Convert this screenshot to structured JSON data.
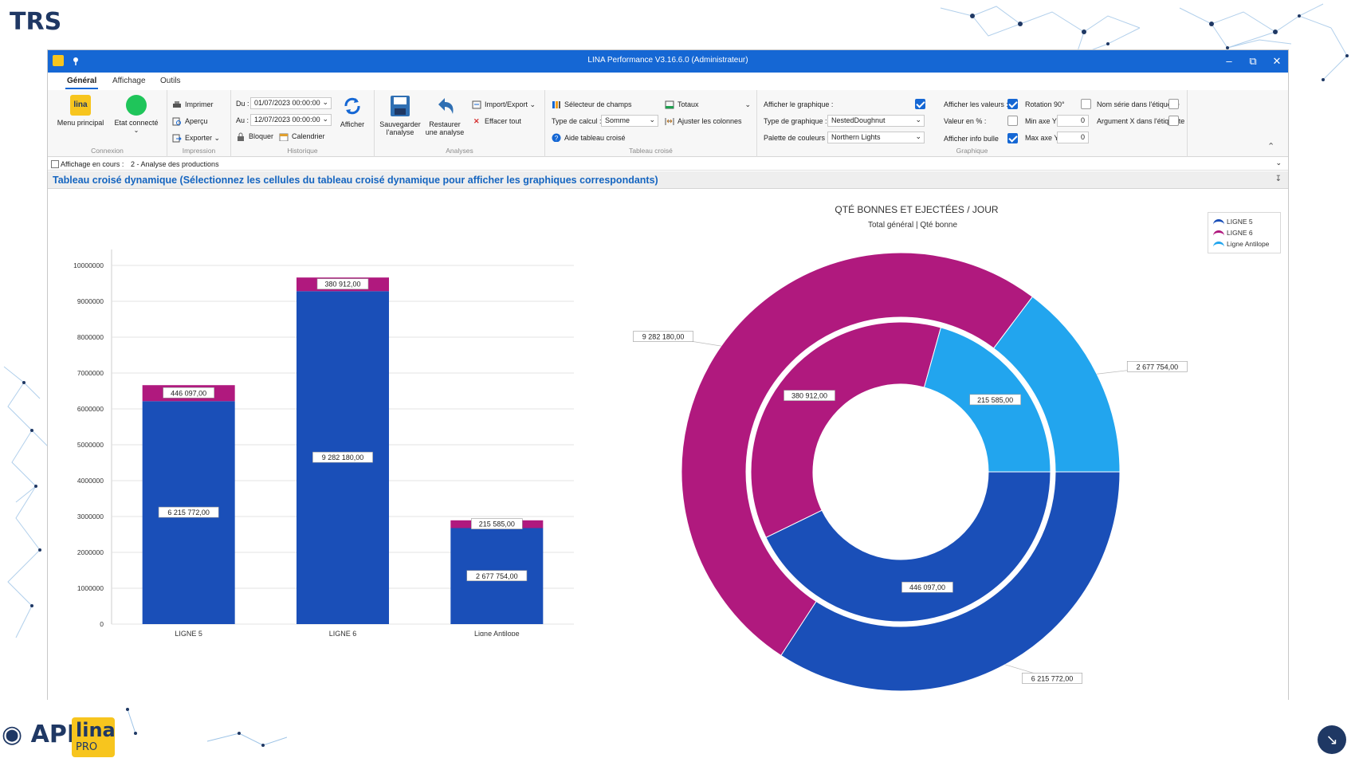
{
  "slide": {
    "title": "TRS"
  },
  "window": {
    "title": "LINA Performance  V3.16.6.0  (Administrateur)"
  },
  "menu": {
    "tabs": [
      "Général",
      "Affichage",
      "Outils"
    ]
  },
  "ribbon": {
    "menu_principal": "Menu principal",
    "etat_connecte": "Etat connecté",
    "group_connexion": "Connexion",
    "imprimer": "Imprimer",
    "apercu": "Aperçu",
    "exporter": "Exporter",
    "group_impression": "Impression",
    "du_label": "Du :",
    "du_value": "01/07/2023 00:00:00",
    "au_label": "Au :",
    "au_value": "12/07/2023 00:00:00",
    "bloquer": "Bloquer",
    "calendrier": "Calendrier",
    "afficher": "Afficher",
    "group_historique": "Historique",
    "sauvegarder_1": "Sauvegarder",
    "sauvegarder_2": "l'analyse",
    "restaurer_1": "Restaurer",
    "restaurer_2": "une analyse",
    "import_export": "Import/Export",
    "effacer_tout": "Effacer tout",
    "group_analyses": "Analyses",
    "selecteur_champs": "Sélecteur de champs",
    "totaux": "Totaux",
    "type_calcul_label": "Type de calcul :",
    "type_calcul_value": "Somme",
    "ajuster_colonnes": "Ajuster les colonnes",
    "aide_tableau": "Aide tableau croisé",
    "group_tableau": "Tableau croisé",
    "afficher_graphique": "Afficher le graphique :",
    "type_graphique_label": "Type de graphique :",
    "type_graphique_value": "NestedDoughnut",
    "palette_label": "Palette de couleurs :",
    "palette_value": "Northern Lights",
    "afficher_valeurs": "Afficher les valeurs :",
    "rotation": "Rotation 90°",
    "nom_serie": "Nom série dans l'étiquette",
    "valeur_pct": "Valeur en % :",
    "min_axe": "Min axe Y :",
    "min_axe_value": "0",
    "argument_x": "Argument X dans l'étiquette",
    "afficher_info_bulle": "Afficher info bulle",
    "max_axe": "Max axe Y :",
    "max_axe_value": "0",
    "group_graphique": "Graphique"
  },
  "status": {
    "label": "Affichage en cours :",
    "value": "2 - Analyse des productions"
  },
  "pivot": {
    "title": "Tableau croisé dynamique (Sélectionnez les cellules du tableau croisé dynamique pour afficher les graphiques correspondants)"
  },
  "colors": {
    "blue": "#1a4fb8",
    "magenta": "#b0197e",
    "lightblue": "#22a5ee",
    "accent": "#1567d4"
  },
  "chart_data": [
    {
      "type": "bar",
      "stacked": true,
      "categories": [
        "LIGNE 5",
        "LIGNE 6",
        "Ligne Antilope"
      ],
      "series": [
        {
          "values": [
            6215772,
            9282180,
            2677754
          ],
          "labels": [
            "6 215 772,00",
            "9 282 180,00",
            "2 677 754,00"
          ],
          "color": "#1a4fb8"
        },
        {
          "values": [
            446097,
            380912,
            215585
          ],
          "labels": [
            "446 097,00",
            "380 912,00",
            "215 585,00"
          ],
          "color": "#b0197e"
        }
      ],
      "yticks": [
        "0",
        "1000000",
        "2000000",
        "3000000",
        "4000000",
        "5000000",
        "6000000",
        "7000000",
        "8000000",
        "9000000",
        "10000000"
      ],
      "ylim": [
        0,
        10000000
      ],
      "grid": true
    },
    {
      "type": "pie",
      "variant": "nested-doughnut",
      "title": "QTÉ BONNES ET EJECTÉES / JOUR",
      "subtitle": "Total général | Qté bonne",
      "categories": [
        "LIGNE 5",
        "LIGNE 6",
        "Ligne Antilope"
      ],
      "outer": {
        "values": [
          6215772,
          9282180,
          2677754
        ],
        "labels": [
          "6 215 772,00",
          "9 282 180,00",
          "2 677 754,00"
        ]
      },
      "inner": {
        "values": [
          446097,
          380912,
          215585
        ],
        "labels": [
          "446 097,00",
          "380 912,00",
          "215 585,00"
        ]
      },
      "legend": [
        "LIGNE 5",
        "LIGNE 6",
        "Ligne Antilope"
      ],
      "legend_position": "top-right"
    }
  ]
}
